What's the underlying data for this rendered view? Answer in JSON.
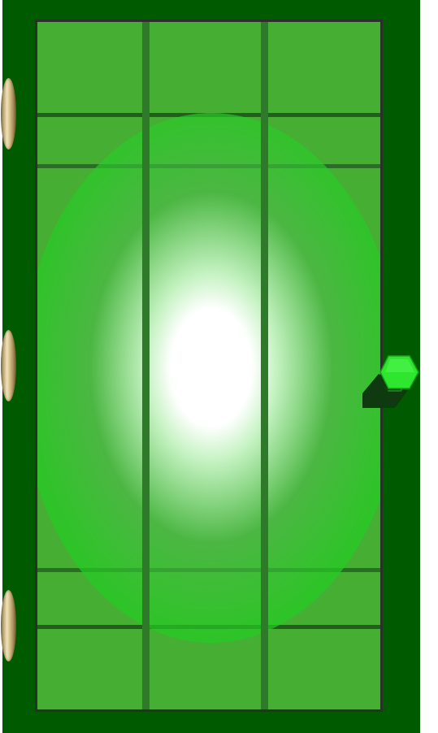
{
  "door": {
    "frame_color": "#005a00",
    "panel_color": "#46ae32",
    "border_color": "#2a2f2a",
    "grid_columns": 3,
    "grid_rows": 5
  },
  "light": {
    "core_color": "#ffffff",
    "halo_color": "#22cc22"
  },
  "icons": {
    "hinges": [
      "hinge-icon",
      "hinge-icon",
      "hinge-icon"
    ],
    "handle": "hexagon-knob-icon"
  },
  "colors": {
    "hinge_gold": "#d8c48e",
    "knob_green": "#2ee62e",
    "knob_shadow": "#0f3a0f"
  }
}
